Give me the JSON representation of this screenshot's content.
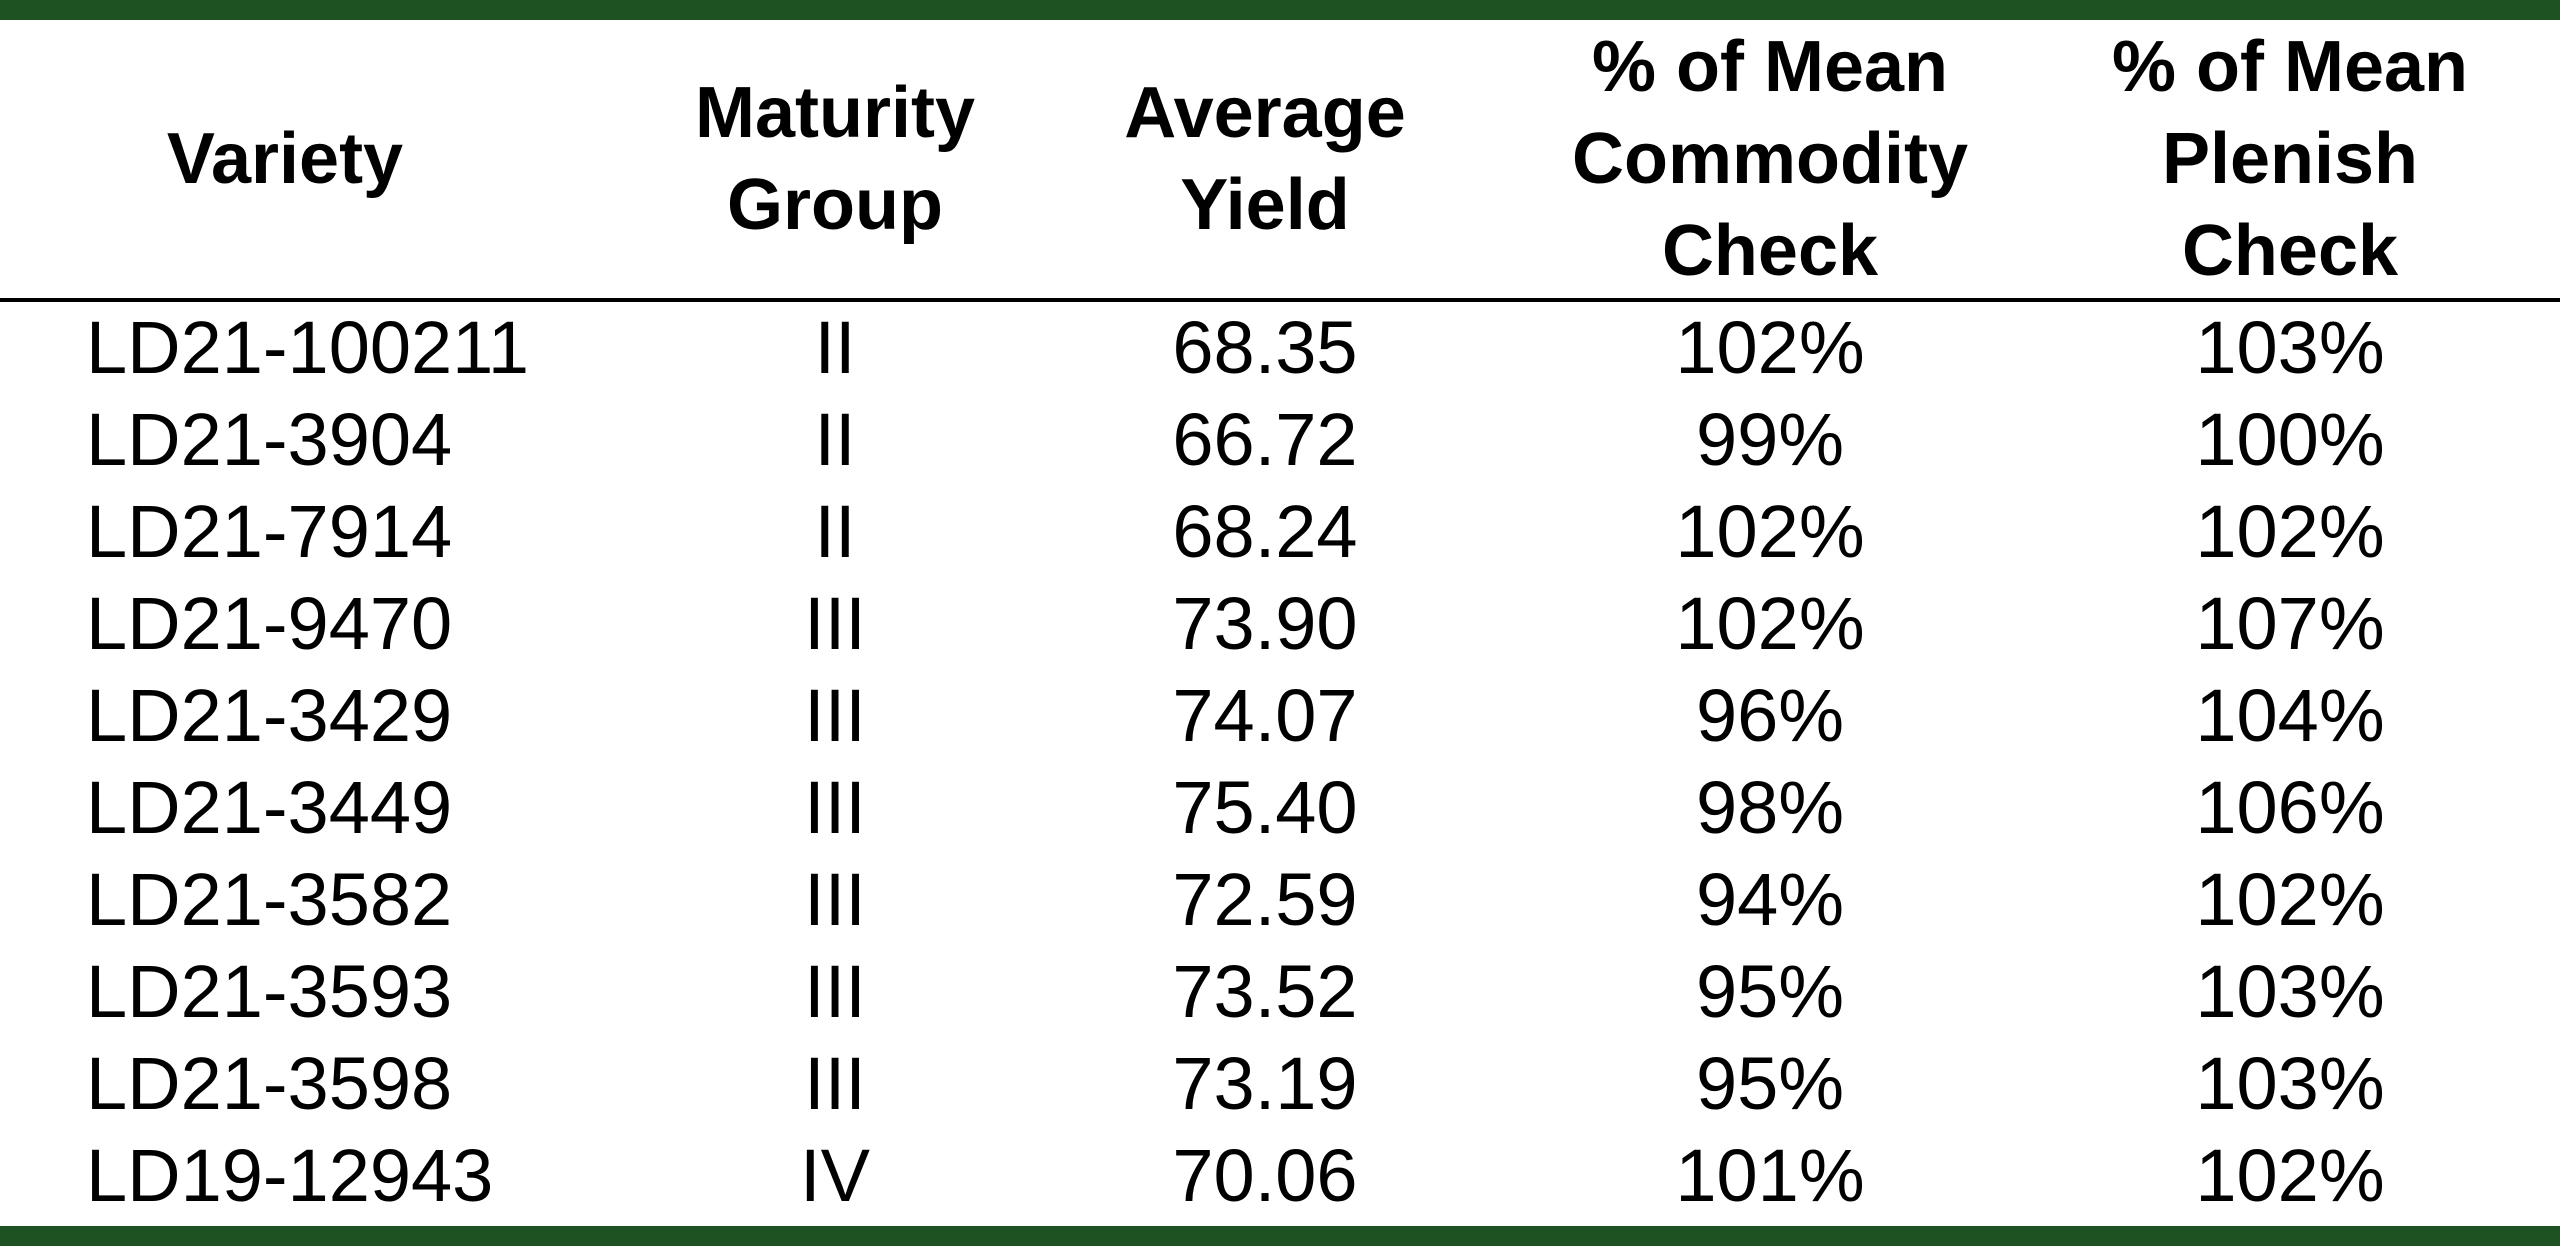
{
  "table": {
    "headers": [
      "Variety",
      "Maturity\nGroup",
      "Average\nYield",
      "% of Mean\nCommodity\nCheck",
      "% of Mean\nPlenish\nCheck"
    ],
    "rows": [
      [
        "LD21-100211",
        "II",
        "68.35",
        "102%",
        "103%"
      ],
      [
        "LD21-3904",
        "II",
        "66.72",
        "99%",
        "100%"
      ],
      [
        "LD21-7914",
        "II",
        "68.24",
        "102%",
        "102%"
      ],
      [
        "LD21-9470",
        "III",
        "73.90",
        "102%",
        "107%"
      ],
      [
        "LD21-3429",
        "III",
        "74.07",
        "96%",
        "104%"
      ],
      [
        "LD21-3449",
        "III",
        "75.40",
        "98%",
        "106%"
      ],
      [
        "LD21-3582",
        "III",
        "72.59",
        "94%",
        "102%"
      ],
      [
        "LD21-3593",
        "III",
        "73.52",
        "95%",
        "103%"
      ],
      [
        "LD21-3598",
        "III",
        "73.19",
        "95%",
        "103%"
      ],
      [
        "LD19-12943",
        "IV",
        "70.06",
        "101%",
        "102%"
      ]
    ]
  },
  "colors": {
    "border": "#1e5223",
    "rule": "#000000",
    "text": "#000000",
    "background": "#ffffff"
  }
}
